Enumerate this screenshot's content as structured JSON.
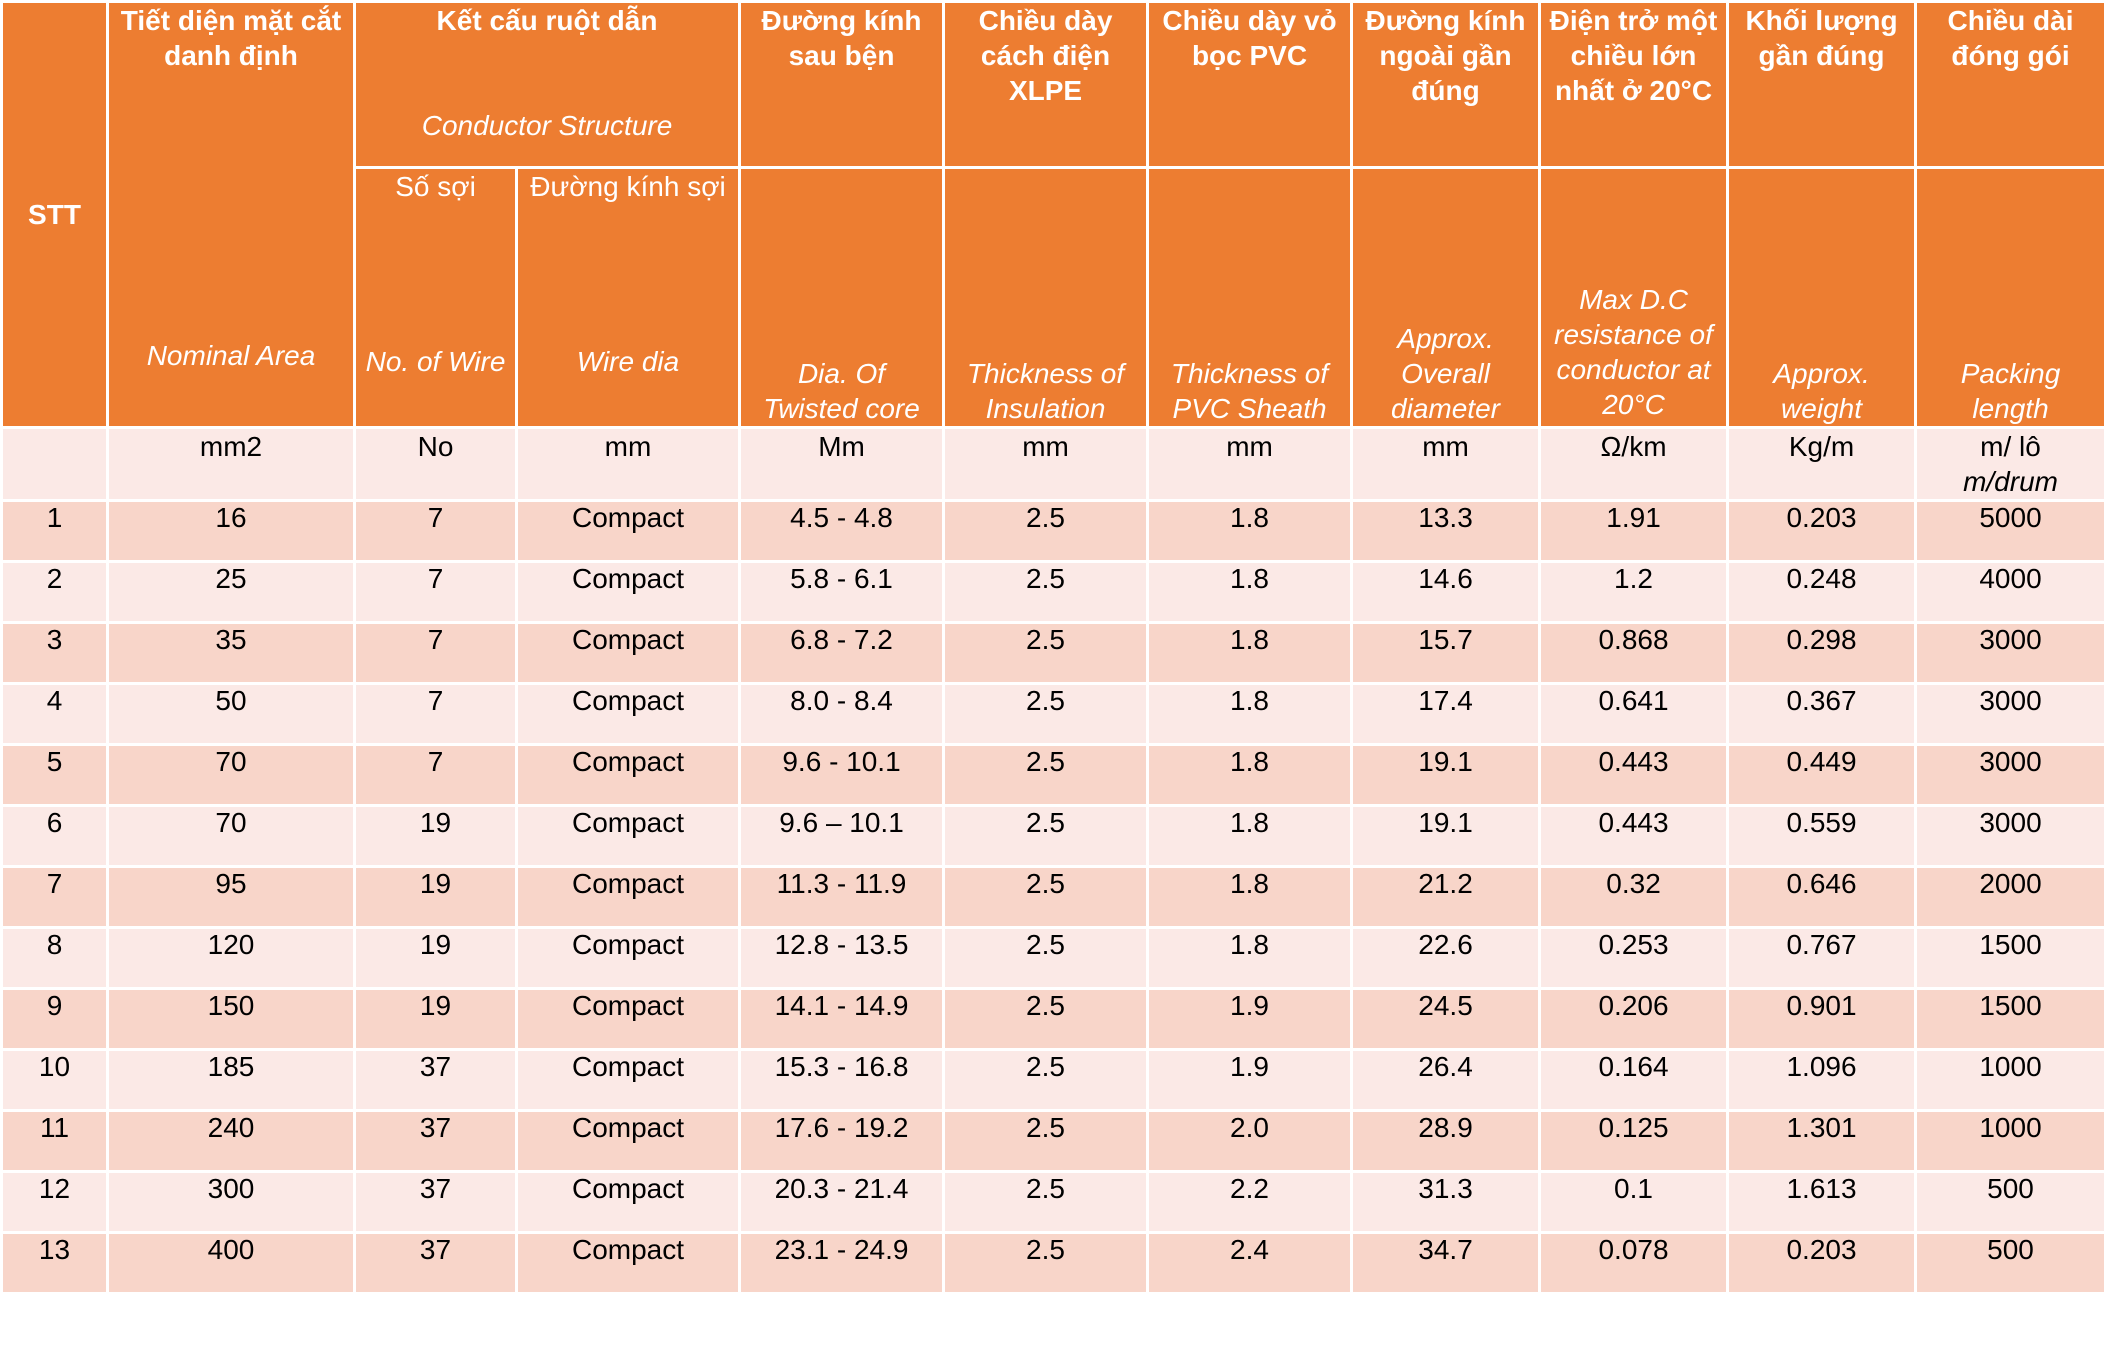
{
  "headers": {
    "stt": "STT",
    "nominal_area": {
      "vi": "Tiết diện mặt cắt danh định",
      "en": "Nominal Area"
    },
    "conductor_structure": {
      "vi": "Kết cấu ruột dẫn",
      "en": "Conductor Structure"
    },
    "no_of_wire": {
      "vi": "Số sợi",
      "en": "No. of Wire"
    },
    "wire_dia": {
      "vi": "Đường kính sợi",
      "en": "Wire dia"
    },
    "twisted_core": {
      "vi": "Đường kính sau bện",
      "en": "Dia. Of Twisted core"
    },
    "insulation": {
      "vi": "Chiều dày cách điện XLPE",
      "en": "Thickness of Insulation"
    },
    "sheath": {
      "vi": "Chiều dày vỏ bọc PVC",
      "en": "Thickness of PVC Sheath"
    },
    "overall_dia": {
      "vi": "Đường kính ngoài gần đúng",
      "en": "Approx. Overall diameter"
    },
    "resistance": {
      "vi": "Điện trở một chiều lớn nhất ở 20°C",
      "en": "Max D.C resistance of conductor at 20°C"
    },
    "weight": {
      "vi": "Khối lượng gần đúng",
      "en": "Approx. weight"
    },
    "packing": {
      "vi": "Chiều dài đóng gói",
      "en": "Packing length"
    }
  },
  "units": {
    "stt": "",
    "area": "mm2",
    "no": "No",
    "wire_dia": "mm",
    "twisted": "Mm",
    "insulation": "mm",
    "sheath": "mm",
    "overall": "mm",
    "resistance": "Ω/km",
    "weight": "Kg/m",
    "packing": "m/ lô",
    "packing_en": "m/drum"
  },
  "rows": [
    [
      "1",
      "16",
      "7",
      "Compact",
      "4.5 - 4.8",
      "2.5",
      "1.8",
      "13.3",
      "1.91",
      "0.203",
      "5000"
    ],
    [
      "2",
      "25",
      "7",
      "Compact",
      "5.8 - 6.1",
      "2.5",
      "1.8",
      "14.6",
      "1.2",
      "0.248",
      "4000"
    ],
    [
      "3",
      "35",
      "7",
      "Compact",
      "6.8 - 7.2",
      "2.5",
      "1.8",
      "15.7",
      "0.868",
      "0.298",
      "3000"
    ],
    [
      "4",
      "50",
      "7",
      "Compact",
      "8.0 - 8.4",
      "2.5",
      "1.8",
      "17.4",
      "0.641",
      "0.367",
      "3000"
    ],
    [
      "5",
      "70",
      "7",
      "Compact",
      "9.6 - 10.1",
      "2.5",
      "1.8",
      "19.1",
      "0.443",
      "0.449",
      "3000"
    ],
    [
      "6",
      "70",
      "19",
      "Compact",
      "9.6 – 10.1",
      "2.5",
      "1.8",
      "19.1",
      "0.443",
      "0.559",
      "3000"
    ],
    [
      "7",
      "95",
      "19",
      "Compact",
      "11.3 - 11.9",
      "2.5",
      "1.8",
      "21.2",
      "0.32",
      "0.646",
      "2000"
    ],
    [
      "8",
      "120",
      "19",
      "Compact",
      "12.8 - 13.5",
      "2.5",
      "1.8",
      "22.6",
      "0.253",
      "0.767",
      "1500"
    ],
    [
      "9",
      "150",
      "19",
      "Compact",
      "14.1 - 14.9",
      "2.5",
      "1.9",
      "24.5",
      "0.206",
      "0.901",
      "1500"
    ],
    [
      "10",
      "185",
      "37",
      "Compact",
      "15.3 - 16.8",
      "2.5",
      "1.9",
      "26.4",
      "0.164",
      "1.096",
      "1000"
    ],
    [
      "11",
      "240",
      "37",
      "Compact",
      "17.6 - 19.2",
      "2.5",
      "2.0",
      "28.9",
      "0.125",
      "1.301",
      "1000"
    ],
    [
      "12",
      "300",
      "37",
      "Compact",
      "20.3 - 21.4",
      "2.5",
      "2.2",
      "31.3",
      "0.1",
      "1.613",
      "500"
    ],
    [
      "13",
      "400",
      "37",
      "Compact",
      "23.1 - 24.9",
      "2.5",
      "2.4",
      "34.7",
      "0.078",
      "0.203",
      "500"
    ]
  ]
}
